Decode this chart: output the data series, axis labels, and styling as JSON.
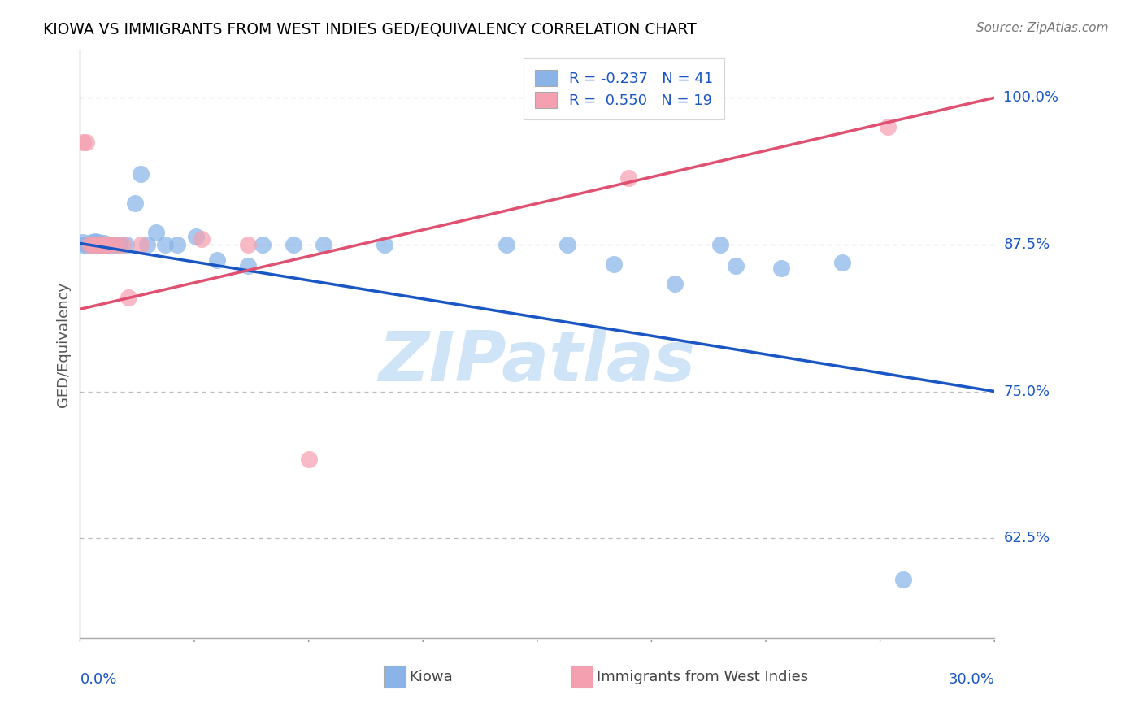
{
  "title": "KIOWA VS IMMIGRANTS FROM WEST INDIES GED/EQUIVALENCY CORRELATION CHART",
  "source": "Source: ZipAtlas.com",
  "ylabel": "GED/Equivalency",
  "xmin": 0.0,
  "xmax": 0.3,
  "ymin": 0.54,
  "ymax": 1.04,
  "yticks": [
    0.625,
    0.75,
    0.875,
    1.0
  ],
  "ytick_labels": [
    "62.5%",
    "75.0%",
    "87.5%",
    "100.0%"
  ],
  "blue_color": "#8ab4e8",
  "pink_color": "#f4a0b0",
  "blue_line_color": "#1a56c4",
  "pink_line_color": "#e05070",
  "legend_R1": "-0.237",
  "legend_N1": "41",
  "legend_R2": "0.550",
  "legend_N2": "19",
  "watermark": "ZIPatlas",
  "watermark_color": "#d0e4f7",
  "kiowa_x": [
    0.001,
    0.001,
    0.002,
    0.003,
    0.004,
    0.004,
    0.005,
    0.005,
    0.006,
    0.006,
    0.007,
    0.008,
    0.008,
    0.009,
    0.01,
    0.011,
    0.012,
    0.013,
    0.015,
    0.018,
    0.02,
    0.022,
    0.025,
    0.028,
    0.032,
    0.038,
    0.045,
    0.055,
    0.06,
    0.07,
    0.08,
    0.1,
    0.14,
    0.16,
    0.175,
    0.195,
    0.21,
    0.215,
    0.23,
    0.25,
    0.27
  ],
  "kiowa_y": [
    0.875,
    0.877,
    0.875,
    0.875,
    0.875,
    0.877,
    0.875,
    0.878,
    0.875,
    0.877,
    0.875,
    0.875,
    0.876,
    0.875,
    0.875,
    0.875,
    0.875,
    0.875,
    0.875,
    0.91,
    0.935,
    0.875,
    0.885,
    0.875,
    0.875,
    0.882,
    0.862,
    0.857,
    0.875,
    0.875,
    0.875,
    0.875,
    0.875,
    0.875,
    0.858,
    0.842,
    0.875,
    0.857,
    0.855,
    0.86,
    0.59
  ],
  "westindies_x": [
    0.001,
    0.002,
    0.003,
    0.004,
    0.005,
    0.006,
    0.007,
    0.008,
    0.009,
    0.01,
    0.012,
    0.014,
    0.016,
    0.02,
    0.04,
    0.055,
    0.075,
    0.18,
    0.265
  ],
  "westindies_y": [
    0.962,
    0.962,
    0.875,
    0.875,
    0.875,
    0.875,
    0.875,
    0.875,
    0.875,
    0.875,
    0.875,
    0.875,
    0.83,
    0.875,
    0.88,
    0.875,
    0.692,
    0.932,
    0.975
  ],
  "blue_trend_x": [
    0.0,
    0.3
  ],
  "blue_trend_y": [
    0.876,
    0.75
  ],
  "pink_trend_x": [
    0.0,
    0.3
  ],
  "pink_trend_y": [
    0.82,
    1.0
  ]
}
